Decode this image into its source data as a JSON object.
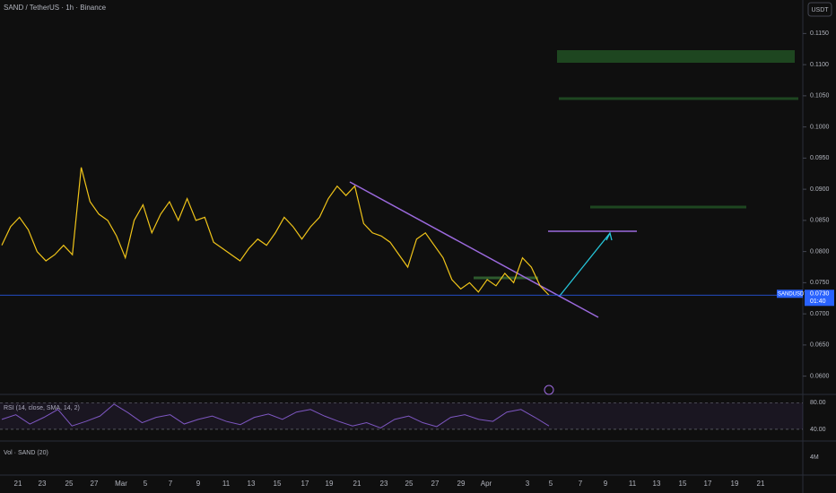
{
  "chart_data": {
    "type": "line",
    "title": "SAND / TetherUS · 1h · Binance",
    "currency": "USDT",
    "values": [
      0.081,
      0.084,
      0.0855,
      0.0835,
      0.08,
      0.0785,
      0.0795,
      0.081,
      0.0795,
      0.0935,
      0.088,
      0.086,
      0.085,
      0.0825,
      0.079,
      0.085,
      0.0875,
      0.083,
      0.086,
      0.088,
      0.085,
      0.0885,
      0.085,
      0.0855,
      0.0815,
      0.0805,
      0.0795,
      0.0785,
      0.0805,
      0.082,
      0.081,
      0.083,
      0.0855,
      0.084,
      0.082,
      0.084,
      0.0855,
      0.0885,
      0.0905,
      0.089,
      0.0905,
      0.0845,
      0.083,
      0.0825,
      0.0815,
      0.0795,
      0.0775,
      0.082,
      0.083,
      0.081,
      0.079,
      0.0755,
      0.074,
      0.075,
      0.0735,
      0.0755,
      0.0745,
      0.0765,
      0.075,
      0.079,
      0.0775,
      0.0745,
      0.073
    ],
    "color": "#f0c419",
    "ylim": [
      0.0575,
      0.1175
    ],
    "yticks": [
      {
        "value": 0.115,
        "label": "0.1150"
      },
      {
        "value": 0.11,
        "label": "0.1100"
      },
      {
        "value": 0.105,
        "label": "0.1050"
      },
      {
        "value": 0.1,
        "label": "0.1000"
      },
      {
        "value": 0.095,
        "label": "0.0950"
      },
      {
        "value": 0.09,
        "label": "0.0900"
      },
      {
        "value": 0.085,
        "label": "0.0850"
      },
      {
        "value": 0.08,
        "label": "0.0800"
      },
      {
        "value": 0.075,
        "label": "0.0750"
      },
      {
        "value": 0.07,
        "label": "0.0700"
      },
      {
        "value": 0.065,
        "label": "0.0650"
      },
      {
        "value": 0.06,
        "label": "0.0600"
      }
    ],
    "xticks": [
      "21",
      "23",
      "25",
      "27",
      "Mar",
      "5",
      "7",
      "9",
      "11",
      "13",
      "15",
      "17",
      "19",
      "21",
      "23",
      "25",
      "27",
      "29",
      "Apr",
      "3",
      "5",
      "7",
      "9",
      "11",
      "13",
      "15",
      "17",
      "19",
      "21"
    ],
    "last_price": {
      "symbol": "SANDUSDT",
      "value": 0.073,
      "label": "0.0730",
      "countdown": "01:40"
    },
    "rsi": {
      "title": "RSI (14, close, SMA, 14, 2)",
      "values": [
        55,
        62,
        48,
        58,
        70,
        45,
        52,
        60,
        78,
        65,
        50,
        58,
        62,
        48,
        55,
        60,
        52,
        47,
        58,
        63,
        55,
        66,
        70,
        60,
        52,
        45,
        50,
        42,
        55,
        60,
        50,
        44,
        58,
        62,
        55,
        52,
        66,
        70,
        58,
        45
      ],
      "ylim": [
        25,
        90
      ],
      "yticks": [
        {
          "value": 80,
          "label": "80.00"
        },
        {
          "value": 40,
          "label": "40.00"
        }
      ],
      "color": "#7e57c2"
    },
    "volume": {
      "title": "Vol · SAND (20)",
      "ticks": [
        "4M"
      ]
    }
  }
}
